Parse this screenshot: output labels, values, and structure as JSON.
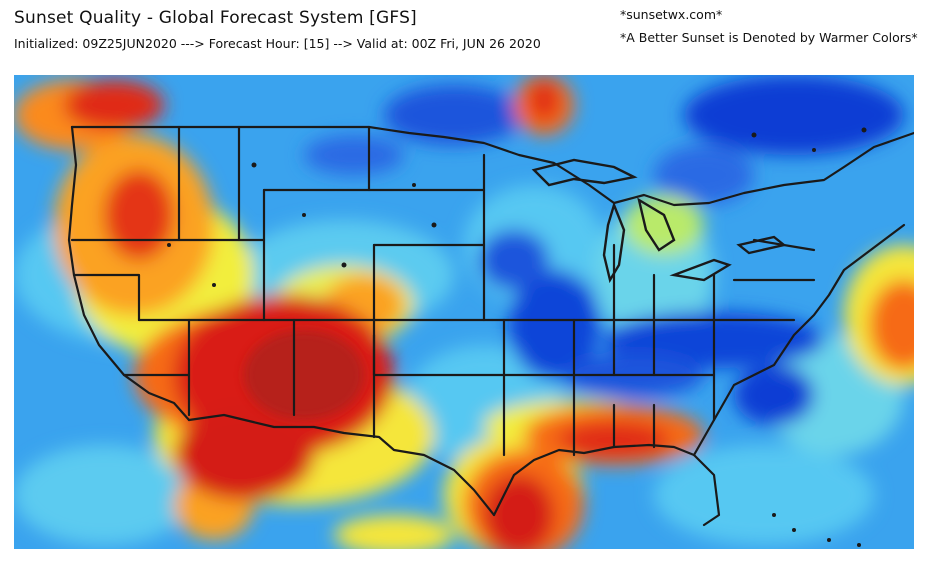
{
  "header": {
    "title": "Sunset Quality - Global Forecast System [GFS]",
    "run_info": "Initialized: 09Z25JUN2020 ---> Forecast Hour: [15] --> Valid at: 00Z Fri, JUN 26 2020",
    "site": "*sunsetwx.com*",
    "note": "*A Better Sunset is Denoted by Warmer Colors*"
  },
  "map": {
    "region": "Contiguous United States",
    "color_scale": [
      "#0a3fd6",
      "#2f86ee",
      "#52c7f2",
      "#8fe6c9",
      "#f3ef3a",
      "#fbb31f",
      "#f25a17",
      "#d41b14"
    ],
    "background_color": "#3aa3ee"
  }
}
